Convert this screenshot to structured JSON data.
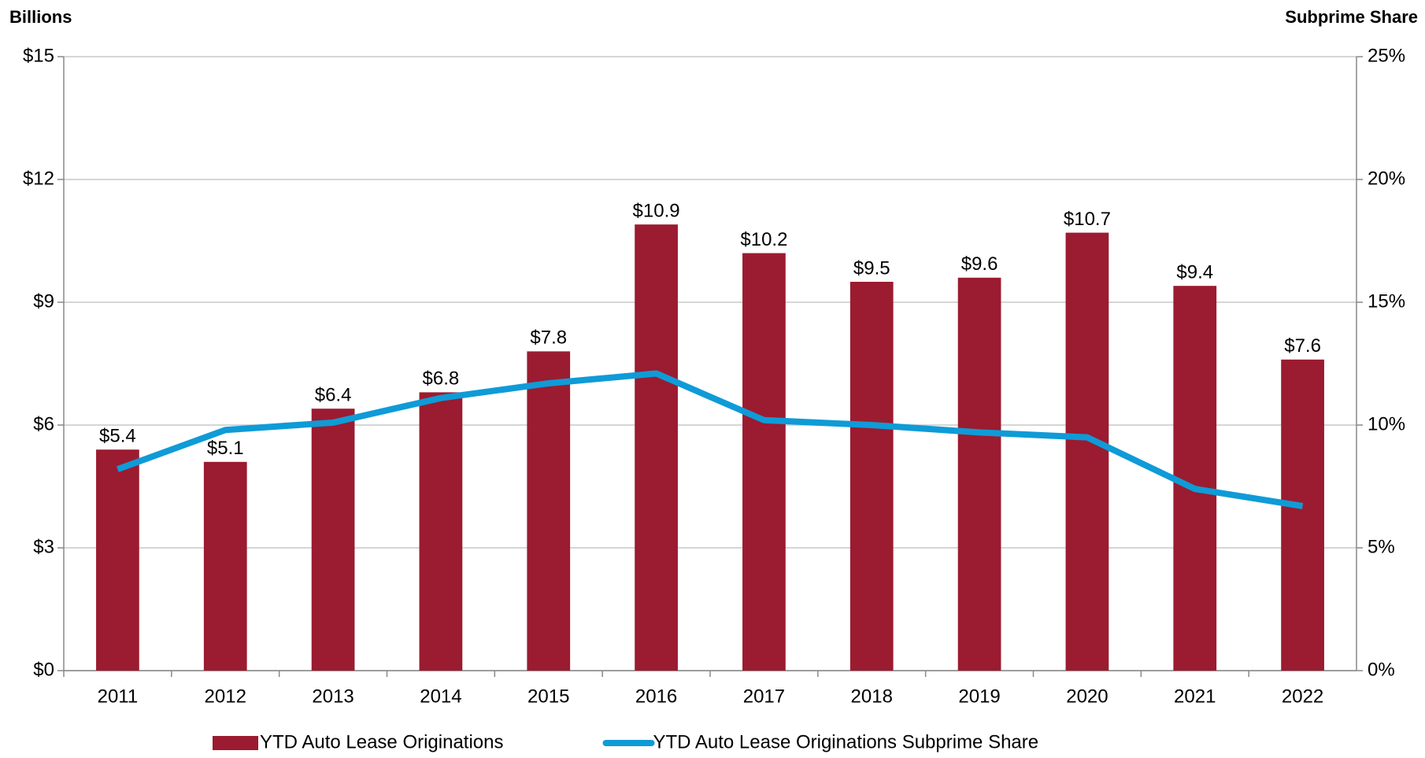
{
  "chart_data": {
    "type": "bar",
    "y_label": "Billions",
    "y2_label": "Subprime Share",
    "categories": [
      "2011",
      "2012",
      "2013",
      "2014",
      "2015",
      "2016",
      "2017",
      "2018",
      "2019",
      "2020",
      "2021",
      "2022"
    ],
    "series": [
      {
        "name": "YTD Auto Lease Originations",
        "type": "bar",
        "color": "#9b1b30",
        "values": [
          5.4,
          5.1,
          6.4,
          6.8,
          7.8,
          10.9,
          10.2,
          9.5,
          9.6,
          10.7,
          9.4,
          7.6
        ],
        "value_labels": [
          "$5.4",
          "$5.1",
          "$6.4",
          "$6.8",
          "$7.8",
          "$10.9",
          "$10.2",
          "$9.5",
          "$9.6",
          "$10.7",
          "$9.4",
          "$7.6"
        ]
      },
      {
        "name": "YTD Auto Lease Originations Subprime Share",
        "type": "line",
        "axis": "y2",
        "color": "#0f9bd7",
        "values": [
          8.2,
          9.8,
          10.1,
          11.1,
          11.7,
          12.1,
          10.2,
          10.0,
          9.7,
          9.5,
          7.4,
          6.7
        ]
      }
    ],
    "ylim": [
      0,
      15
    ],
    "yticks": [
      {
        "value": 0,
        "label": "$0"
      },
      {
        "value": 3,
        "label": "$3"
      },
      {
        "value": 6,
        "label": "$6"
      },
      {
        "value": 9,
        "label": "$9"
      },
      {
        "value": 12,
        "label": "$12"
      },
      {
        "value": 15,
        "label": "$15"
      }
    ],
    "y2lim": [
      0,
      25
    ],
    "y2ticks": [
      {
        "value": 0,
        "label": "0%"
      },
      {
        "value": 5,
        "label": "5%"
      },
      {
        "value": 10,
        "label": "10%"
      },
      {
        "value": 15,
        "label": "15%"
      },
      {
        "value": 20,
        "label": "20%"
      },
      {
        "value": 25,
        "label": "25%"
      }
    ],
    "grid": true,
    "legend": "bottom"
  }
}
